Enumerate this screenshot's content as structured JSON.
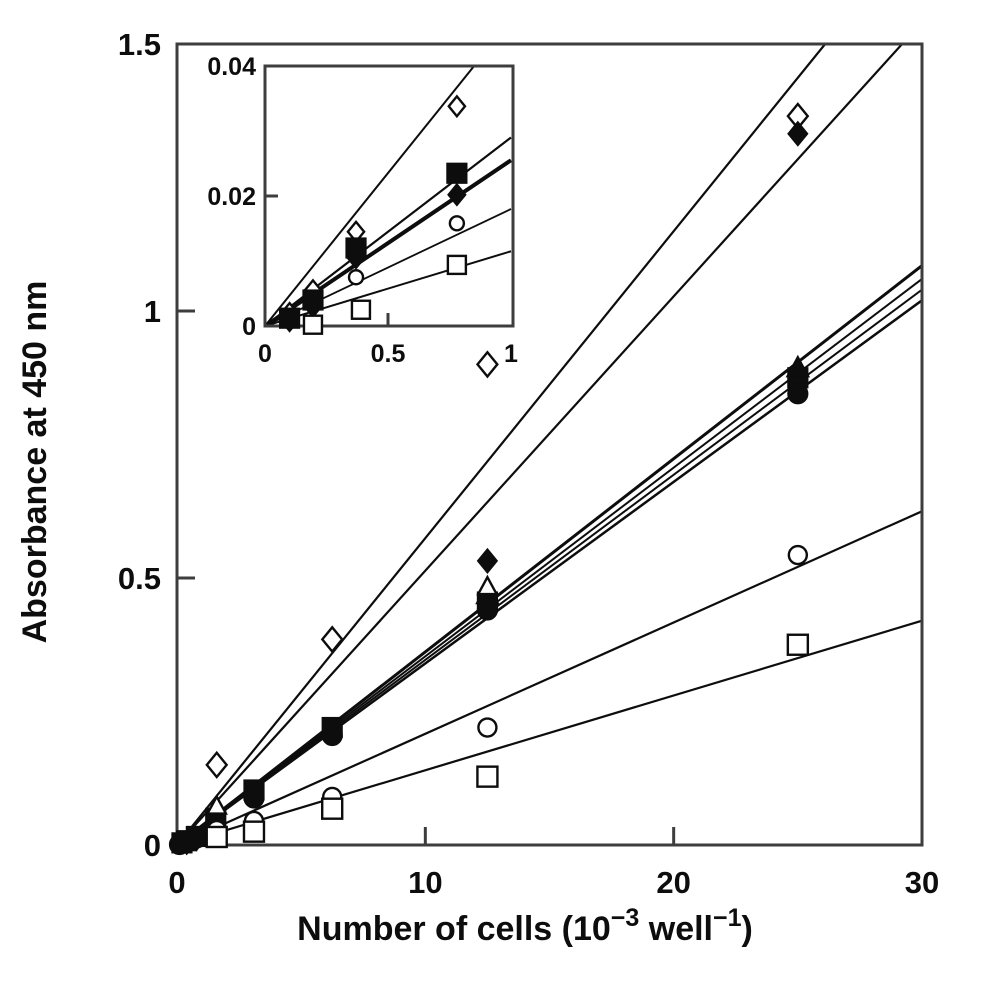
{
  "figure": {
    "background": "#ffffff",
    "ink": "#0d0d0d",
    "axis_color": "#3d3d3d"
  },
  "chart_data": {
    "type": "scatter",
    "title": "",
    "grid": false,
    "legend_position": "none",
    "ylabel": "Absorbance at 450 nm",
    "xlabel_parts": {
      "pre": "Number of cells (10",
      "sup1": "−3",
      "mid": " well",
      "sup2": "−1",
      "post": ")"
    },
    "main": {
      "xlim": [
        0,
        30
      ],
      "ylim": [
        0,
        1.5
      ],
      "x_ticks": [
        {
          "v": 0,
          "label": "0",
          "mark": false
        },
        {
          "v": 10,
          "label": "10",
          "mark": true
        },
        {
          "v": 20,
          "label": "20",
          "mark": true
        },
        {
          "v": 30,
          "label": "30",
          "mark": false
        }
      ],
      "y_ticks": [
        {
          "v": 0,
          "label": "0",
          "mark": false
        },
        {
          "v": 0.5,
          "label": "0.5",
          "mark": true
        },
        {
          "v": 1,
          "label": "1",
          "mark": true
        },
        {
          "v": 1.5,
          "label": "1.5",
          "mark": false
        }
      ],
      "series": [
        {
          "name": "diamond-open",
          "marker": "diamond",
          "fill": "open",
          "size": 11,
          "line_width": 2.2,
          "line": [
            [
              0,
              0
            ],
            [
              26.1,
              1.5
            ]
          ],
          "points": [
            [
              1.6,
              0.15
            ],
            [
              6.25,
              0.385
            ],
            [
              12.5,
              0.9
            ],
            [
              25,
              1.365
            ]
          ]
        },
        {
          "name": "diamond-filled",
          "marker": "diamond",
          "fill": "filled",
          "size": 11,
          "line_width": 2.2,
          "line": [
            [
              0,
              0
            ],
            [
              29.2,
              1.5
            ]
          ],
          "points": [
            [
              0.39,
              0.005
            ],
            [
              0.78,
              0.012
            ],
            [
              1.56,
              0.032
            ],
            [
              12.5,
              0.532
            ],
            [
              25,
              1.332
            ]
          ]
        },
        {
          "name": "square-filled",
          "marker": "square",
          "fill": "filled",
          "size": 10,
          "line_width": 3,
          "line": [
            [
              0,
              0
            ],
            [
              30,
              1.085
            ]
          ],
          "points": [
            [
              0.2,
              0.004
            ],
            [
              0.39,
              0.008
            ],
            [
              0.78,
              0.016
            ],
            [
              1.56,
              0.05
            ],
            [
              3.1,
              0.103
            ],
            [
              6.25,
              0.22
            ],
            [
              12.5,
              0.455
            ],
            [
              25,
              0.875
            ]
          ]
        },
        {
          "name": "triangle-filled",
          "marker": "triangle",
          "fill": "filled",
          "size": 11,
          "line_width": 2,
          "line": [
            [
              0,
              0
            ],
            [
              30,
              1.06
            ]
          ],
          "points": [
            [
              12.5,
              0.468
            ],
            [
              25,
              0.893
            ]
          ]
        },
        {
          "name": "triangle-open",
          "marker": "triangle",
          "fill": "open",
          "size": 9,
          "line_width": 2,
          "line": [
            [
              0,
              0
            ],
            [
              30,
              1.04
            ]
          ],
          "points": [
            [
              1.6,
              0.072
            ],
            [
              12.5,
              0.483
            ]
          ]
        },
        {
          "name": "circle-filled",
          "marker": "circle",
          "fill": "filled",
          "size": 10,
          "line_width": 2.5,
          "line": [
            [
              0,
              0
            ],
            [
              30,
              1.02
            ]
          ],
          "points": [
            [
              0.1,
              0.001
            ],
            [
              0.2,
              0.003
            ],
            [
              0.39,
              0.006
            ],
            [
              0.78,
              0.013
            ],
            [
              1.56,
              0.038
            ],
            [
              3.1,
              0.088
            ],
            [
              6.25,
              0.205
            ],
            [
              12.5,
              0.44
            ],
            [
              25,
              0.845
            ]
          ]
        },
        {
          "name": "circle-open",
          "marker": "circle",
          "fill": "open",
          "size": 9,
          "line_width": 2.2,
          "line": [
            [
              0,
              0
            ],
            [
              30,
              0.625
            ]
          ],
          "points": [
            [
              1.6,
              0.028
            ],
            [
              3.1,
              0.045
            ],
            [
              6.25,
              0.09
            ],
            [
              12.5,
              0.22
            ],
            [
              25,
              0.543
            ]
          ]
        },
        {
          "name": "square-open",
          "marker": "square",
          "fill": "open",
          "size": 10,
          "line_width": 2.2,
          "line": [
            [
              0,
              0
            ],
            [
              30,
              0.42
            ]
          ],
          "points": [
            [
              1.6,
              0.015
            ],
            [
              3.1,
              0.025
            ],
            [
              6.25,
              0.068
            ],
            [
              12.5,
              0.128
            ],
            [
              25,
              0.375
            ]
          ]
        }
      ]
    },
    "inset": {
      "xlim": [
        0,
        1
      ],
      "ylim": [
        0,
        0.04
      ],
      "x_ticks": [
        {
          "v": 0,
          "label": "0",
          "mark": false
        },
        {
          "v": 0.5,
          "label": "0.5",
          "mark": true
        },
        {
          "v": 1,
          "label": "1",
          "mark": false
        }
      ],
      "y_ticks": [
        {
          "v": 0,
          "label": "0",
          "mark": false
        },
        {
          "v": 0.02,
          "label": "0.02",
          "mark": true
        },
        {
          "v": 0.04,
          "label": "0.04",
          "mark": false
        }
      ],
      "series": [
        {
          "name": "diamond-open",
          "marker": "diamond",
          "fill": "open",
          "size": 9,
          "line_width": 2,
          "line": [
            [
              0,
              0
            ],
            [
              0.85,
              0.04
            ]
          ],
          "points": [
            [
              0.1,
              0.002
            ],
            [
              0.195,
              0.0055
            ],
            [
              0.37,
              0.0145
            ],
            [
              0.78,
              0.0338
            ]
          ]
        },
        {
          "name": "square-filled",
          "marker": "square",
          "fill": "filled",
          "size": 10,
          "line_width": 2.2,
          "line": [
            [
              0,
              0
            ],
            [
              1,
              0.029
            ]
          ],
          "points": [
            [
              0.1,
              0.0012
            ],
            [
              0.195,
              0.004
            ],
            [
              0.37,
              0.012
            ],
            [
              0.78,
              0.0235
            ]
          ]
        },
        {
          "name": "diamond-filled",
          "marker": "diamond",
          "fill": "filled",
          "size": 10,
          "line_width": 4,
          "line": [
            [
              0,
              0
            ],
            [
              1,
              0.0255
            ]
          ],
          "points": [
            [
              0.1,
              0.0008
            ],
            [
              0.195,
              0.003
            ],
            [
              0.37,
              0.0105
            ],
            [
              0.78,
              0.0202
            ]
          ]
        },
        {
          "name": "circle-open",
          "marker": "circle",
          "fill": "open",
          "size": 7,
          "line_width": 1.8,
          "line": [
            [
              0,
              0
            ],
            [
              1,
              0.018
            ]
          ],
          "points": [
            [
              0.37,
              0.0075
            ],
            [
              0.78,
              0.0158
            ]
          ]
        },
        {
          "name": "square-open",
          "marker": "square",
          "fill": "open",
          "size": 9,
          "line_width": 2,
          "line": [
            [
              0,
              0
            ],
            [
              1,
              0.0115
            ]
          ],
          "points": [
            [
              0.195,
              0.0002
            ],
            [
              0.39,
              0.0025
            ],
            [
              0.78,
              0.0094
            ]
          ]
        }
      ]
    }
  }
}
